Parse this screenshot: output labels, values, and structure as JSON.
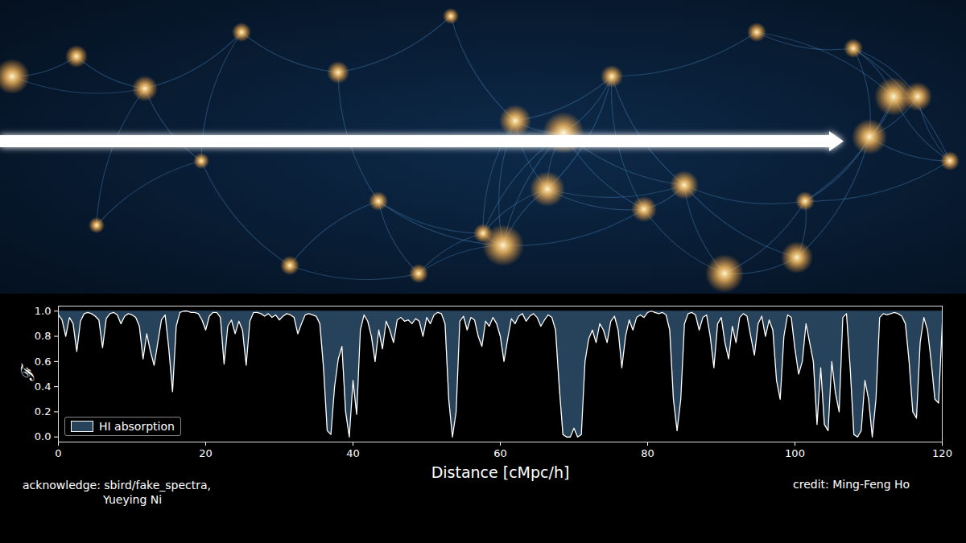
{
  "chart_data": {
    "type": "line",
    "x_label": "Distance [cMpc/h]",
    "y_label": "ℱ",
    "xlim": [
      0,
      120
    ],
    "xticks": [
      0,
      20,
      40,
      60,
      80,
      100,
      120
    ],
    "ylim": [
      -0.04,
      1.04
    ],
    "yticks": [
      {
        "value": 0,
        "label": "0.0"
      },
      {
        "value": 0.2,
        "label": "0.2"
      },
      {
        "value": 0.4,
        "label": "0.4"
      },
      {
        "value": 0.6,
        "label": "0.6"
      },
      {
        "value": 0.8,
        "label": "0.8"
      },
      {
        "value": 1,
        "label": "1.0"
      }
    ],
    "legend": "lower left",
    "x": [
      0,
      0.5,
      1,
      1.5,
      2,
      2.5,
      3,
      3.5,
      4,
      4.5,
      5,
      5.5,
      6,
      6.5,
      7,
      7.5,
      8,
      8.5,
      9,
      9.5,
      10,
      10.5,
      11,
      11.5,
      12,
      12.5,
      13,
      13.5,
      14,
      14.5,
      15,
      15.5,
      16,
      16.5,
      17,
      17.5,
      18,
      18.5,
      19,
      19.5,
      20,
      20.5,
      21,
      21.5,
      22,
      22.5,
      23,
      23.5,
      24,
      24.5,
      25,
      25.5,
      26,
      26.5,
      27,
      27.5,
      28,
      28.5,
      29,
      29.5,
      30,
      30.5,
      31,
      31.5,
      32,
      32.5,
      33,
      33.5,
      34,
      34.5,
      35,
      35.5,
      36,
      36.5,
      37,
      37.5,
      38,
      38.5,
      39,
      39.5,
      40,
      40.5,
      41,
      41.5,
      42,
      42.5,
      43,
      43.5,
      44,
      44.5,
      45,
      45.5,
      46,
      46.5,
      47,
      47.5,
      48,
      48.5,
      49,
      49.5,
      50,
      50.5,
      51,
      51.5,
      52,
      52.5,
      53,
      53.5,
      54,
      54.5,
      55,
      55.5,
      56,
      56.5,
      57,
      57.5,
      58,
      58.5,
      59,
      59.5,
      60,
      60.5,
      61,
      61.5,
      62,
      62.5,
      63,
      63.5,
      64,
      64.5,
      65,
      65.5,
      66,
      66.5,
      67,
      67.5,
      68,
      68.5,
      69,
      69.5,
      70,
      70.5,
      71,
      71.5,
      72,
      72.5,
      73,
      73.5,
      74,
      74.5,
      75,
      75.5,
      76,
      76.5,
      77,
      77.5,
      78,
      78.5,
      79,
      79.5,
      80,
      80.5,
      81,
      81.5,
      82,
      82.5,
      83,
      83.5,
      84,
      84.5,
      85,
      85.5,
      86,
      86.5,
      87,
      87.5,
      88,
      88.5,
      89,
      89.5,
      90,
      90.5,
      91,
      91.5,
      92,
      92.5,
      93,
      93.5,
      94,
      94.5,
      95,
      95.5,
      96,
      96.5,
      97,
      97.5,
      98,
      98.5,
      99,
      99.5,
      100,
      100.5,
      101,
      101.5,
      102,
      102.5,
      103,
      103.5,
      104,
      104.5,
      105,
      105.5,
      106,
      106.5,
      107,
      107.5,
      108,
      108.5,
      109,
      109.5,
      110,
      110.5,
      111,
      111.5,
      112,
      112.5,
      113,
      113.5,
      114,
      114.5,
      115,
      115.5,
      116,
      116.5,
      117,
      117.5,
      118,
      118.5,
      119,
      119.5,
      120
    ],
    "series": [
      {
        "name": "HI absorption",
        "color": "#ffffff",
        "values": [
          0.97,
          0.93,
          0.8,
          0.95,
          0.9,
          0.68,
          0.92,
          0.98,
          0.99,
          0.98,
          0.96,
          0.93,
          0.71,
          0.94,
          0.98,
          0.99,
          0.97,
          0.9,
          0.96,
          0.98,
          0.97,
          0.95,
          0.88,
          0.62,
          0.82,
          0.68,
          0.57,
          0.75,
          0.93,
          0.97,
          0.7,
          0.36,
          0.88,
          0.99,
          1,
          1,
          0.99,
          0.99,
          0.98,
          0.93,
          0.85,
          0.96,
          0.99,
          0.99,
          0.95,
          0.58,
          0.88,
          0.93,
          0.82,
          0.92,
          0.85,
          0.57,
          0.92,
          0.99,
          0.99,
          0.98,
          0.96,
          0.98,
          0.95,
          0.97,
          0.93,
          0.96,
          0.98,
          0.97,
          0.95,
          0.82,
          0.9,
          0.97,
          0.98,
          0.97,
          0.96,
          0.9,
          0.55,
          0.05,
          0.02,
          0.4,
          0.62,
          0.72,
          0.2,
          0,
          0.45,
          0.18,
          0.85,
          0.97,
          0.92,
          0.8,
          0.6,
          0.85,
          0.7,
          0.92,
          0.85,
          0.75,
          0.93,
          0.95,
          0.92,
          0.93,
          0.9,
          0.94,
          0.92,
          0.8,
          0.95,
          0.9,
          0.97,
          0.99,
          0.98,
          0.9,
          0.3,
          0,
          0.2,
          0.92,
          0.96,
          0.85,
          0.95,
          0.93,
          0.8,
          0.72,
          0.92,
          0.88,
          0.95,
          0.9,
          0.8,
          0.6,
          0.78,
          0.94,
          0.9,
          0.96,
          0.98,
          0.92,
          0.96,
          0.98,
          0.95,
          0.88,
          0.93,
          0.97,
          0.95,
          0.85,
          0.4,
          0.02,
          0,
          0,
          0.07,
          0,
          0.02,
          0.6,
          0.78,
          0.85,
          0.75,
          0.9,
          0.85,
          0.75,
          0.92,
          0.96,
          0.85,
          0.55,
          0.8,
          0.93,
          0.85,
          0.95,
          0.97,
          0.95,
          0.99,
          1,
          0.99,
          0.98,
          0.99,
          0.97,
          0.85,
          0.3,
          0.05,
          0.3,
          0.9,
          0.98,
          0.99,
          0.97,
          0.85,
          0.95,
          0.97,
          0.8,
          0.55,
          0.9,
          0.95,
          0.75,
          0.62,
          0.88,
          0.75,
          0.95,
          0.98,
          0.96,
          0.8,
          0.65,
          0.9,
          0.96,
          0.8,
          0.93,
          0.85,
          0.45,
          0.3,
          0.8,
          0.97,
          0.95,
          0.7,
          0.5,
          0.6,
          0.9,
          0.75,
          0.6,
          0.1,
          0.55,
          0.1,
          0.05,
          0.6,
          0.35,
          0.2,
          0.95,
          0.98,
          0.55,
          0.02,
          0,
          0.05,
          0.45,
          0.3,
          0,
          0.3,
          0.95,
          0.98,
          0.97,
          0.98,
          0.99,
          0.98,
          0.96,
          0.9,
          0.6,
          0.2,
          0.15,
          0.75,
          0.95,
          0.85,
          0.6,
          0.3,
          0.27,
          0.9
        ]
      }
    ],
    "acknowledgement_lines": [
      "acknowledge: sbird/fake_spectra,",
      "Yueying Ni"
    ],
    "credit": "credit: Ming-Feng Ho"
  }
}
